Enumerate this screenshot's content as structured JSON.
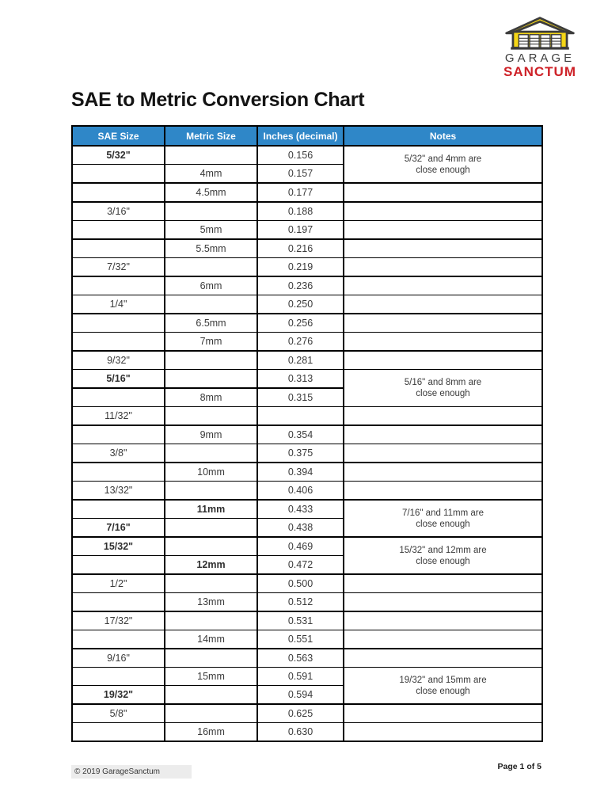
{
  "logo": {
    "garage_text": "GARAGE",
    "sanctum_text": "SANCTUM",
    "colors": {
      "yellow": "#f5d616",
      "outline": "#3c3c3c",
      "red": "#ce2127",
      "gray_text": "#3d3d3d"
    }
  },
  "title": "SAE to Metric Conversion Chart",
  "table": {
    "header": {
      "bg_color": "#2f87c8",
      "columns": [
        "SAE Size",
        "Metric Size",
        "Inches (decimal)",
        "Notes"
      ]
    },
    "rows": [
      {
        "sae": "5/32\"",
        "metric": "",
        "inches": "0.156",
        "bold_sae": true,
        "note": {
          "lines": [
            "5/32\" and 4mm are",
            "close enough"
          ],
          "span": 2,
          "thick_bottom": true
        }
      },
      {
        "sae": "",
        "metric": "4mm",
        "inches": "0.157",
        "note_covered": true,
        "thick": true
      },
      {
        "sae": "",
        "metric": "4.5mm",
        "inches": "0.177",
        "thick": true
      },
      {
        "sae": "3/16\"",
        "metric": "",
        "inches": "0.188"
      },
      {
        "sae": "",
        "metric": "5mm",
        "inches": "0.197",
        "thick": true
      },
      {
        "sae": "",
        "metric": "5.5mm",
        "inches": "0.216"
      },
      {
        "sae": "7/32\"",
        "metric": "",
        "inches": "0.219",
        "thick": true
      },
      {
        "sae": "",
        "metric": "6mm",
        "inches": "0.236"
      },
      {
        "sae": "1/4\"",
        "metric": "",
        "inches": "0.250",
        "thick": true
      },
      {
        "sae": "",
        "metric": "6.5mm",
        "inches": "0.256"
      },
      {
        "sae": "",
        "metric": "7mm",
        "inches": "0.276",
        "thick": true
      },
      {
        "sae": "9/32\"",
        "metric": "",
        "inches": "0.281"
      },
      {
        "sae": "5/16\"",
        "metric": "",
        "inches": "0.313",
        "bold_sae": true,
        "thick": true,
        "note": {
          "lines": [
            "5/16\" and 8mm are",
            "close enough"
          ],
          "span": 2,
          "thick_bottom": false
        }
      },
      {
        "sae": "",
        "metric": "8mm",
        "inches": "0.315",
        "note_covered": true
      },
      {
        "sae": "11/32\"",
        "metric": "",
        "inches": "",
        "thick": true
      },
      {
        "sae": "",
        "metric": "9mm",
        "inches": "0.354"
      },
      {
        "sae": "3/8\"",
        "metric": "",
        "inches": "0.375",
        "thick": true
      },
      {
        "sae": "",
        "metric": "10mm",
        "inches": "0.394"
      },
      {
        "sae": "13/32\"",
        "metric": "",
        "inches": "0.406",
        "thick": true
      },
      {
        "sae": "",
        "metric": "11mm",
        "inches": "0.433",
        "bold_metric": true,
        "note": {
          "lines": [
            "7/16\" and 11mm are",
            "close enough"
          ],
          "span": 2,
          "thick_bottom": true
        }
      },
      {
        "sae": "7/16\"",
        "metric": "",
        "inches": "0.438",
        "bold_sae": true,
        "note_covered": true,
        "thick": true
      },
      {
        "sae": "15/32\"",
        "metric": "",
        "inches": "0.469",
        "bold_sae": true,
        "note": {
          "lines": [
            "15/32\" and 12mm are",
            "close enough"
          ],
          "span": 2,
          "thick_bottom": true
        }
      },
      {
        "sae": "",
        "metric": "12mm",
        "inches": "0.472",
        "bold_metric": true,
        "note_covered": true,
        "thick": true
      },
      {
        "sae": "1/2\"",
        "metric": "",
        "inches": "0.500"
      },
      {
        "sae": "",
        "metric": "13mm",
        "inches": "0.512",
        "thick": true
      },
      {
        "sae": "17/32\"",
        "metric": "",
        "inches": "0.531"
      },
      {
        "sae": "",
        "metric": "14mm",
        "inches": "0.551",
        "thick": true
      },
      {
        "sae": "9/16\"",
        "metric": "",
        "inches": "0.563"
      },
      {
        "sae": "",
        "metric": "15mm",
        "inches": "0.591",
        "note": {
          "lines": [
            "19/32\" and 15mm are",
            "close enough"
          ],
          "span": 2,
          "thick_bottom": true
        }
      },
      {
        "sae": "19/32\"",
        "metric": "",
        "inches": "0.594",
        "bold_sae": true,
        "note_covered": true,
        "thick": true
      },
      {
        "sae": "5/8\"",
        "metric": "",
        "inches": "0.625"
      },
      {
        "sae": "",
        "metric": "16mm",
        "inches": "0.630",
        "thick": true
      }
    ]
  },
  "footer": {
    "copyright": "© 2019 GarageSanctum",
    "page": "Page 1 of 5"
  }
}
